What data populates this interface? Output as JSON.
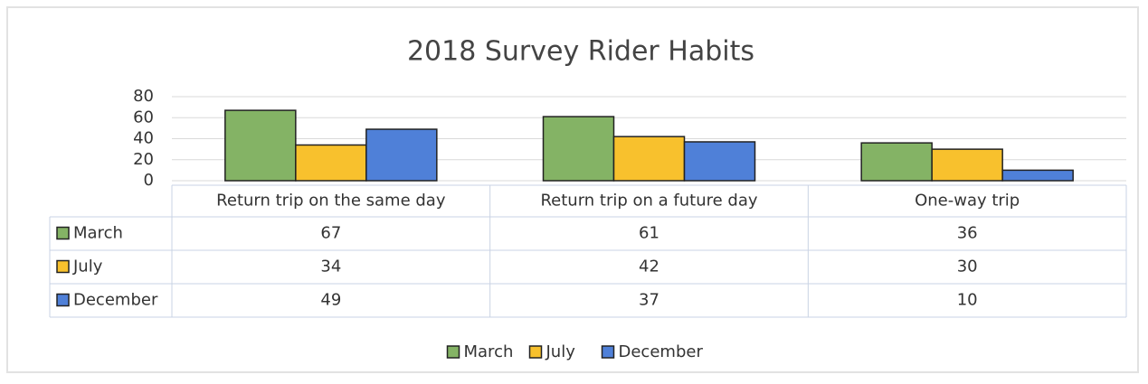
{
  "chart_data": {
    "type": "bar",
    "title": "2018 Survey Rider Habits",
    "categories": [
      "Return trip on the same day",
      "Return trip on a future day",
      "One-way trip"
    ],
    "series": [
      {
        "name": "March",
        "color": "#84b365",
        "values": [
          67,
          61,
          36
        ]
      },
      {
        "name": "July",
        "color": "#f8c12d",
        "values": [
          34,
          42,
          30
        ]
      },
      {
        "name": "December",
        "color": "#4f80d8",
        "values": [
          49,
          37,
          10
        ]
      }
    ],
    "ylim": [
      0,
      80
    ],
    "yticks": [
      0,
      20,
      40,
      60,
      80
    ],
    "grid": true,
    "legend": "bottom",
    "data_table": true
  }
}
